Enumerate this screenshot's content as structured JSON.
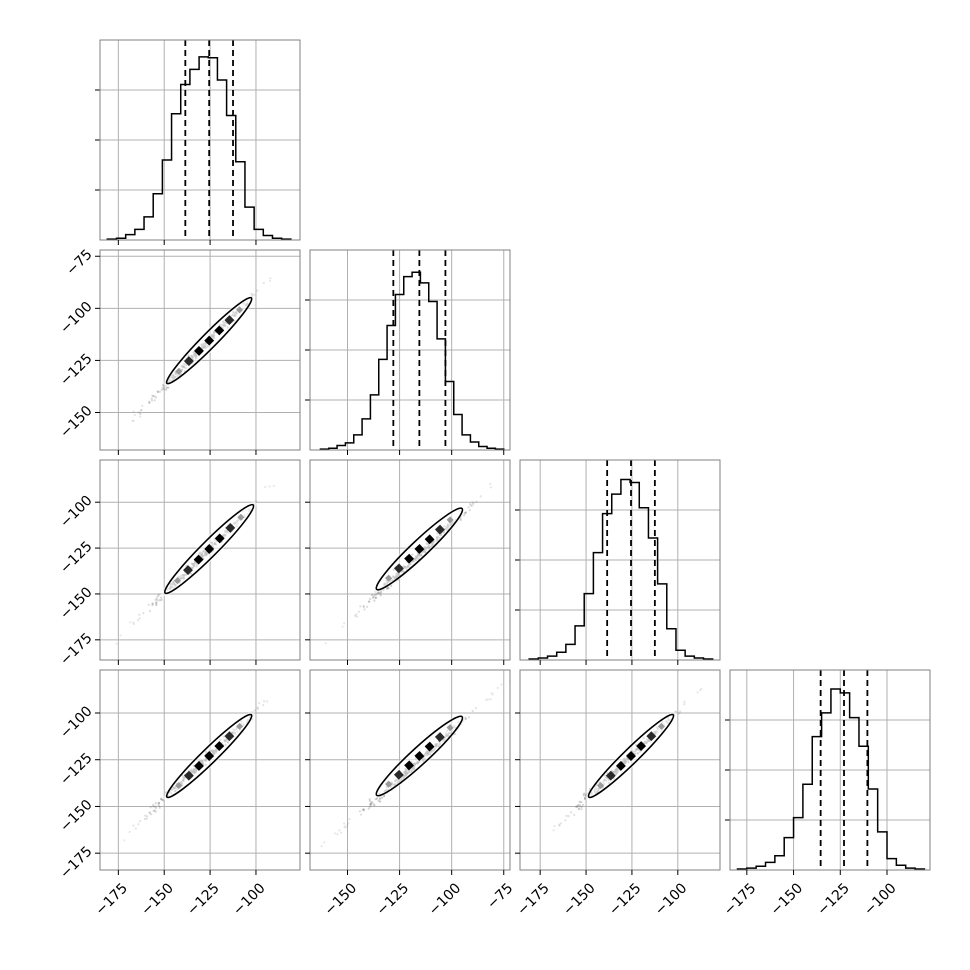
{
  "chart_data": {
    "type": "corner",
    "colors": {
      "line": "#000000",
      "grid": "#b0b0b0",
      "frame": "#808080",
      "scatter": "#6e6e6e",
      "density_mid": "#9a9a9a"
    },
    "grid": true,
    "axis_ticks": [
      {
        "ticks": [
          -175,
          -150,
          -125,
          -100
        ],
        "labels": [
          "−175",
          "−150",
          "−125",
          "−100"
        ]
      },
      {
        "ticks": [
          -150,
          -125,
          -100,
          -75
        ],
        "labels": [
          "−150",
          "−125",
          "−100",
          "−75"
        ]
      },
      {
        "ticks": [
          -175,
          -150,
          -125,
          -100
        ],
        "labels": [
          "−175",
          "−150",
          "−125",
          "−100"
        ]
      },
      {
        "ticks": [
          -175,
          -150,
          -125,
          -100
        ],
        "labels": [
          "−175",
          "−150",
          "−125",
          "−100"
        ]
      }
    ],
    "axis_ranges": [
      [
        -185,
        -76
      ],
      [
        -168,
        -72
      ],
      [
        -186,
        -77
      ],
      [
        -184,
        -77
      ]
    ],
    "histograms": [
      {
        "bin_edges": [
          -181,
          -176,
          -171,
          -166,
          -161,
          -156,
          -151,
          -146,
          -141,
          -136,
          -131,
          -126,
          -121,
          -116,
          -111,
          -106,
          -101,
          -96,
          -91,
          -86,
          -81
        ],
        "counts": [
          1,
          2,
          6,
          12,
          26,
          52,
          90,
          142,
          175,
          192,
          206,
          205,
          180,
          140,
          88,
          37,
          12,
          5,
          2,
          1
        ],
        "quantiles": [
          -138.5,
          -125.5,
          -112.5
        ],
        "ymax": 225
      },
      {
        "bin_edges": [
          -163,
          -159,
          -155,
          -151,
          -147,
          -143,
          -139,
          -135,
          -131,
          -127,
          -123,
          -119,
          -115,
          -111,
          -107,
          -103,
          -99,
          -95,
          -91,
          -87,
          -83,
          -79,
          -75
        ],
        "counts": [
          1,
          2,
          5,
          8,
          17,
          35,
          62,
          102,
          140,
          175,
          195,
          200,
          188,
          167,
          125,
          77,
          40,
          17,
          9,
          4,
          2,
          1
        ],
        "quantiles": [
          -128,
          -115.5,
          -103
        ],
        "ymax": 225
      },
      {
        "bin_edges": [
          -181,
          -176,
          -171,
          -166,
          -161,
          -156,
          -151,
          -146,
          -141,
          -136,
          -131,
          -126,
          -121,
          -116,
          -111,
          -106,
          -101,
          -96,
          -91,
          -86,
          -81
        ],
        "counts": [
          1,
          2,
          4,
          8,
          16,
          35,
          68,
          110,
          150,
          170,
          185,
          182,
          156,
          125,
          78,
          32,
          10,
          4,
          2,
          1
        ],
        "quantiles": [
          -138.5,
          -125.5,
          -112.5
        ],
        "ymax": 205
      },
      {
        "bin_edges": [
          -180,
          -175,
          -170,
          -165,
          -160,
          -155,
          -150,
          -145,
          -140,
          -135,
          -130,
          -125,
          -120,
          -115,
          -110,
          -105,
          -100,
          -95,
          -90,
          -85,
          -80
        ],
        "counts": [
          1,
          2,
          4,
          8,
          15,
          34,
          55,
          90,
          140,
          165,
          190,
          186,
          160,
          130,
          85,
          40,
          12,
          5,
          2,
          1
        ],
        "quantiles": [
          -135.5,
          -123,
          -110.5
        ],
        "ymax": 210
      }
    ],
    "pairs": [
      {
        "row": 1,
        "col": 0,
        "x_range": [
          -178,
          -82
        ],
        "y_range": [
          -163,
          -76
        ],
        "ellipse": {
          "cx": -125.5,
          "cy": -115.5,
          "half_len_x": 23,
          "half_len_y": 20.5,
          "half_width": 4.5
        }
      },
      {
        "row": 2,
        "col": 0,
        "x_range": [
          -178,
          -82
        ],
        "y_range": [
          -178,
          -82
        ],
        "ellipse": {
          "cx": -125.5,
          "cy": -125.5,
          "half_len_x": 24,
          "half_len_y": 24,
          "half_width": 4.8
        }
      },
      {
        "row": 2,
        "col": 1,
        "x_range": [
          -162,
          -72
        ],
        "y_range": [
          -178,
          -82
        ],
        "ellipse": {
          "cx": -115.5,
          "cy": -125.5,
          "half_len_x": 20.5,
          "half_len_y": 22,
          "half_width": 4.5
        }
      },
      {
        "row": 3,
        "col": 0,
        "x_range": [
          -178,
          -82
        ],
        "y_range": [
          -172,
          -82
        ],
        "ellipse": {
          "cx": -125.5,
          "cy": -123,
          "half_len_x": 23,
          "half_len_y": 22,
          "half_width": 4.5
        }
      },
      {
        "row": 3,
        "col": 1,
        "x_range": [
          -162,
          -72
        ],
        "y_range": [
          -172,
          -82
        ],
        "ellipse": {
          "cx": -115.5,
          "cy": -123,
          "half_len_x": 20.5,
          "half_len_y": 21,
          "half_width": 4.5
        }
      },
      {
        "row": 3,
        "col": 2,
        "x_range": [
          -178,
          -82
        ],
        "y_range": [
          -172,
          -82
        ],
        "ellipse": {
          "cx": -125.5,
          "cy": -123,
          "half_len_x": 23,
          "half_len_y": 22,
          "half_width": 4.5
        }
      }
    ]
  }
}
